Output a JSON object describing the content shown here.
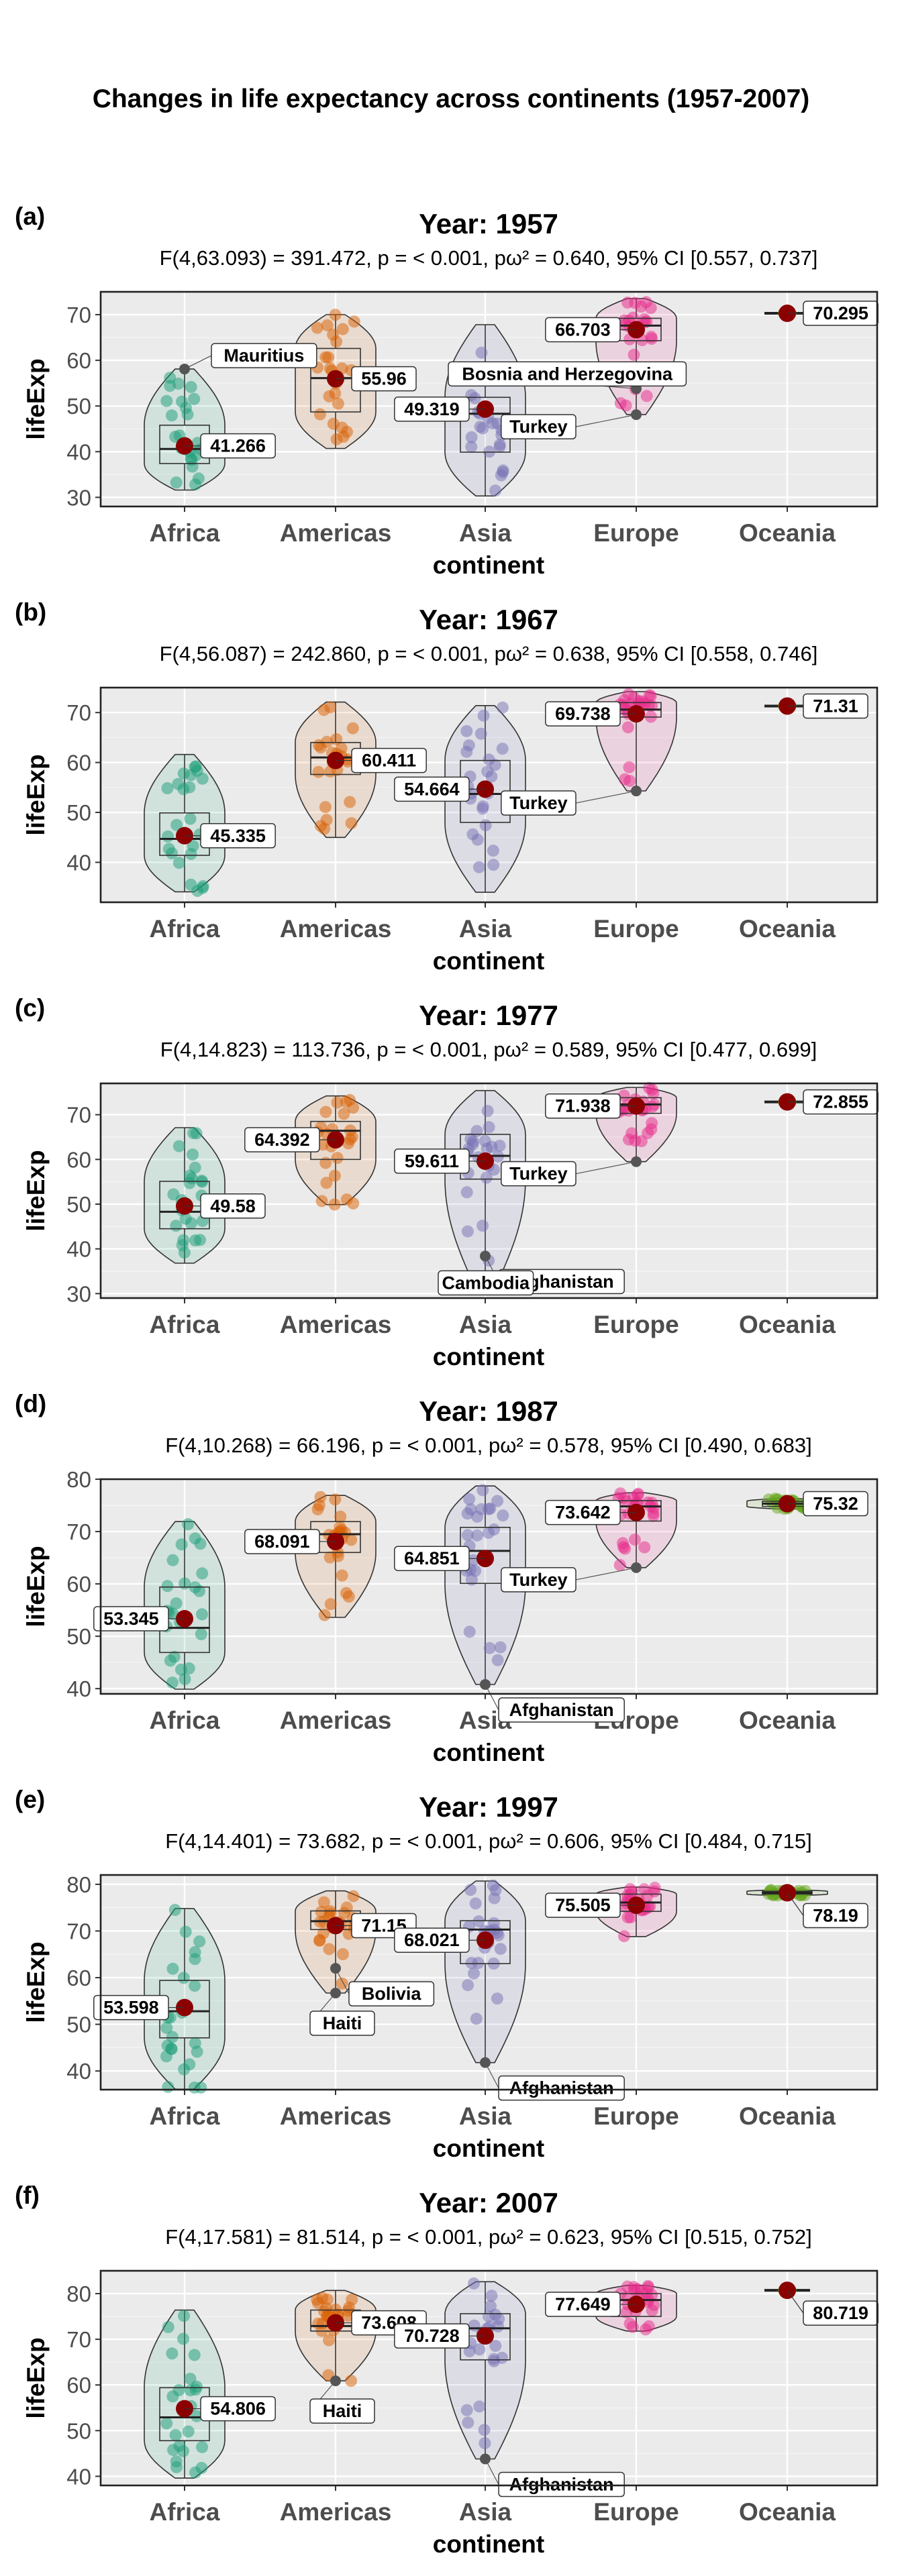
{
  "title": "Changes in life expectancy across continents (1957-2007)",
  "colors": {
    "Africa": "#1b9e77",
    "Americas": "#d95f02",
    "Asia": "#7570b3",
    "Europe": "#e7298a",
    "Oceania": "#66a61e",
    "mean_point": "#8b0000",
    "panel_bg": "#ebebeb",
    "grid": "#ffffff",
    "outlier": "#555555"
  },
  "chart_data": [
    {
      "type": "violin-box",
      "tag": "(a)",
      "title": "Year: 1957",
      "subtitle": "F(4,63.093) = 391.472, p = < 0.001, pω² = 0.640, 95% CI [0.557, 0.737]",
      "xlabel": "continent",
      "ylabel": "lifeExp",
      "categories": [
        "Africa",
        "Americas",
        "Asia",
        "Europe",
        "Oceania"
      ],
      "ylim": [
        28,
        75
      ],
      "yticks": [
        30,
        40,
        50,
        60,
        70
      ],
      "grid": true,
      "groups": [
        {
          "name": "Africa",
          "min": 31.6,
          "q1": 37.4,
          "median": 40.6,
          "q3": 45.8,
          "max": 58.1,
          "mean": 41.266,
          "mean_label": "41.266"
        },
        {
          "name": "Americas",
          "min": 40.7,
          "q1": 48.7,
          "median": 56.1,
          "q3": 62.6,
          "max": 70.0,
          "mean": 55.96,
          "mean_label": "55.96"
        },
        {
          "name": "Asia",
          "min": 30.3,
          "q1": 39.9,
          "median": 48.3,
          "q3": 51.9,
          "max": 67.8,
          "mean": 49.319,
          "mean_label": "49.319"
        },
        {
          "name": "Europe",
          "min": 48.1,
          "q1": 64.3,
          "median": 67.6,
          "q3": 69.2,
          "max": 73.5,
          "mean": 66.703,
          "mean_label": "66.703"
        },
        {
          "name": "Oceania",
          "min": 70.26,
          "q1": 70.27,
          "median": 70.295,
          "q3": 70.31,
          "max": 70.33,
          "mean": 70.295,
          "mean_label": "70.295"
        }
      ],
      "outliers": [
        {
          "group": "Africa",
          "value": 58.1,
          "label": "Mauritius"
        },
        {
          "group": "Europe",
          "value": 53.8,
          "label": "Bosnia and Herzegovina"
        },
        {
          "group": "Europe",
          "value": 48.1,
          "label": "Turkey"
        }
      ]
    },
    {
      "type": "violin-box",
      "tag": "(b)",
      "title": "Year: 1967",
      "subtitle": "F(4,56.087) = 242.860, p = < 0.001, pω² = 0.638, 95% CI [0.558, 0.746]",
      "xlabel": "continent",
      "ylabel": "lifeExp",
      "categories": [
        "Africa",
        "Americas",
        "Asia",
        "Europe",
        "Oceania"
      ],
      "ylim": [
        32,
        75
      ],
      "yticks": [
        40,
        50,
        60,
        70
      ],
      "grid": true,
      "groups": [
        {
          "name": "Africa",
          "min": 34.1,
          "q1": 41.4,
          "median": 44.7,
          "q3": 49.9,
          "max": 61.6,
          "mean": 45.335,
          "mean_label": "45.335"
        },
        {
          "name": "Americas",
          "min": 45.0,
          "q1": 57.6,
          "median": 61.0,
          "q3": 64.0,
          "max": 72.1,
          "mean": 60.411,
          "mean_label": "60.411"
        },
        {
          "name": "Asia",
          "min": 34.0,
          "q1": 48.0,
          "median": 53.7,
          "q3": 60.4,
          "max": 71.4,
          "mean": 54.664,
          "mean_label": "54.664"
        },
        {
          "name": "Europe",
          "min": 54.3,
          "q1": 69.1,
          "median": 70.6,
          "q3": 72.0,
          "max": 74.2,
          "mean": 69.738,
          "mean_label": "69.738"
        },
        {
          "name": "Oceania",
          "min": 71.1,
          "q1": 71.2,
          "median": 71.31,
          "q3": 71.4,
          "max": 71.5,
          "mean": 71.31,
          "mean_label": "71.31"
        }
      ],
      "outliers": [
        {
          "group": "Europe",
          "value": 54.3,
          "label": "Turkey"
        }
      ]
    },
    {
      "type": "violin-box",
      "tag": "(c)",
      "title": "Year: 1977",
      "subtitle": "F(4,14.823) = 113.736, p = < 0.001, pω² = 0.589, 95% CI [0.477, 0.699]",
      "xlabel": "continent",
      "ylabel": "lifeExp",
      "categories": [
        "Africa",
        "Americas",
        "Asia",
        "Europe",
        "Oceania"
      ],
      "ylim": [
        29,
        77
      ],
      "yticks": [
        30,
        40,
        50,
        60,
        70
      ],
      "grid": true,
      "groups": [
        {
          "name": "Africa",
          "min": 36.8,
          "q1": 44.5,
          "median": 48.3,
          "q3": 55.1,
          "max": 67.1,
          "mean": 49.58,
          "mean_label": "49.58"
        },
        {
          "name": "Americas",
          "min": 49.9,
          "q1": 60.0,
          "median": 66.4,
          "q3": 68.5,
          "max": 74.2,
          "mean": 64.392,
          "mean_label": "64.392"
        },
        {
          "name": "Asia",
          "min": 31.2,
          "q1": 55.6,
          "median": 60.8,
          "q3": 65.6,
          "max": 75.4,
          "mean": 59.611,
          "mean_label": "59.611"
        },
        {
          "name": "Europe",
          "min": 59.5,
          "q1": 70.3,
          "median": 72.3,
          "q3": 73.8,
          "max": 76.1,
          "mean": 71.938,
          "mean_label": "71.938"
        },
        {
          "name": "Oceania",
          "min": 72.7,
          "q1": 72.8,
          "median": 72.855,
          "q3": 72.9,
          "max": 73.0,
          "mean": 72.855,
          "mean_label": "72.855"
        }
      ],
      "outliers": [
        {
          "group": "Europe",
          "value": 59.5,
          "label": "Turkey"
        },
        {
          "group": "Asia",
          "value": 38.4,
          "label": "Afghanistan"
        },
        {
          "group": "Asia",
          "value": 31.2,
          "label": "Cambodia"
        }
      ]
    },
    {
      "type": "violin-box",
      "tag": "(d)",
      "title": "Year: 1987",
      "subtitle": "F(4,10.268) = 66.196, p = < 0.001, pω² = 0.578, 95% CI [0.490, 0.683]",
      "xlabel": "continent",
      "ylabel": "lifeExp",
      "categories": [
        "Africa",
        "Americas",
        "Asia",
        "Europe",
        "Oceania"
      ],
      "ylim": [
        39,
        80
      ],
      "yticks": [
        40,
        50,
        60,
        70,
        80
      ],
      "grid": true,
      "groups": [
        {
          "name": "Africa",
          "min": 39.9,
          "q1": 46.9,
          "median": 51.6,
          "q3": 59.4,
          "max": 71.9,
          "mean": 53.345,
          "mean_label": "53.345"
        },
        {
          "name": "Americas",
          "min": 53.6,
          "q1": 66.0,
          "median": 69.5,
          "q3": 71.9,
          "max": 76.9,
          "mean": 68.091,
          "mean_label": "68.091"
        },
        {
          "name": "Asia",
          "min": 40.8,
          "q1": 60.1,
          "median": 66.3,
          "q3": 70.8,
          "max": 78.7,
          "mean": 64.851,
          "mean_label": "64.851"
        },
        {
          "name": "Europe",
          "min": 63.1,
          "q1": 72.0,
          "median": 74.8,
          "q3": 75.9,
          "max": 77.4,
          "mean": 73.642,
          "mean_label": "73.642"
        },
        {
          "name": "Oceania",
          "min": 74.3,
          "q1": 74.8,
          "median": 75.32,
          "q3": 75.8,
          "max": 76.3,
          "mean": 75.32,
          "mean_label": "75.32"
        }
      ],
      "outliers": [
        {
          "group": "Europe",
          "value": 63.1,
          "label": "Turkey"
        },
        {
          "group": "Asia",
          "value": 40.8,
          "label": "Afghanistan"
        }
      ]
    },
    {
      "type": "violin-box",
      "tag": "(e)",
      "title": "Year: 1997",
      "subtitle": "F(4,14.401) = 73.682, p = < 0.001, pω² = 0.606, 95% CI [0.484, 0.715]",
      "xlabel": "continent",
      "ylabel": "lifeExp",
      "categories": [
        "Africa",
        "Americas",
        "Asia",
        "Europe",
        "Oceania"
      ],
      "ylim": [
        36,
        82
      ],
      "yticks": [
        40,
        50,
        60,
        70,
        80
      ],
      "grid": true,
      "groups": [
        {
          "name": "Africa",
          "min": 36.1,
          "q1": 47.1,
          "median": 52.8,
          "q3": 59.4,
          "max": 74.8,
          "mean": 53.598,
          "mean_label": "53.598"
        },
        {
          "name": "Americas",
          "min": 56.7,
          "q1": 70.3,
          "median": 72.1,
          "q3": 74.3,
          "max": 78.6,
          "mean": 71.15,
          "mean_label": "71.15"
        },
        {
          "name": "Asia",
          "min": 41.8,
          "q1": 63.0,
          "median": 70.3,
          "q3": 72.2,
          "max": 80.7,
          "mean": 68.021,
          "mean_label": "68.021"
        },
        {
          "name": "Europe",
          "min": 68.8,
          "q1": 74.2,
          "median": 76.1,
          "q3": 77.9,
          "max": 79.4,
          "mean": 75.505,
          "mean_label": "75.505"
        },
        {
          "name": "Oceania",
          "min": 77.6,
          "q1": 77.9,
          "median": 78.19,
          "q3": 78.5,
          "max": 78.8,
          "mean": 78.19,
          "mean_label": "78.19"
        }
      ],
      "outliers": [
        {
          "group": "Americas",
          "value": 62.0,
          "label": "Bolivia"
        },
        {
          "group": "Americas",
          "value": 56.7,
          "label": "Haiti"
        },
        {
          "group": "Asia",
          "value": 41.8,
          "label": "Afghanistan"
        }
      ]
    },
    {
      "type": "violin-box",
      "tag": "(f)",
      "title": "Year: 2007",
      "subtitle": "F(4,17.581) = 81.514, p = < 0.001, pω² = 0.623, 95% CI [0.515, 0.752]",
      "xlabel": "continent",
      "ylabel": "lifeExp",
      "categories": [
        "Africa",
        "Americas",
        "Asia",
        "Europe",
        "Oceania"
      ],
      "ylim": [
        38,
        85
      ],
      "yticks": [
        40,
        50,
        60,
        70,
        80
      ],
      "grid": true,
      "groups": [
        {
          "name": "Africa",
          "min": 39.6,
          "q1": 47.8,
          "median": 52.9,
          "q3": 59.4,
          "max": 76.4,
          "mean": 54.806,
          "mean_label": "54.806"
        },
        {
          "name": "Americas",
          "min": 60.9,
          "q1": 71.8,
          "median": 72.9,
          "q3": 76.4,
          "max": 80.7,
          "mean": 73.608,
          "mean_label": "73.608"
        },
        {
          "name": "Asia",
          "min": 43.8,
          "q1": 65.5,
          "median": 72.4,
          "q3": 75.6,
          "max": 82.6,
          "mean": 70.728,
          "mean_label": "70.728"
        },
        {
          "name": "Europe",
          "min": 71.8,
          "q1": 75.0,
          "median": 78.6,
          "q3": 80.0,
          "max": 81.8,
          "mean": 77.649,
          "mean_label": "77.649"
        },
        {
          "name": "Oceania",
          "min": 80.2,
          "q1": 80.5,
          "median": 80.719,
          "q3": 80.9,
          "max": 81.2,
          "mean": 80.719,
          "mean_label": "80.719"
        }
      ],
      "outliers": [
        {
          "group": "Americas",
          "value": 60.9,
          "label": "Haiti"
        },
        {
          "group": "Asia",
          "value": 43.8,
          "label": "Afghanistan"
        }
      ]
    }
  ]
}
